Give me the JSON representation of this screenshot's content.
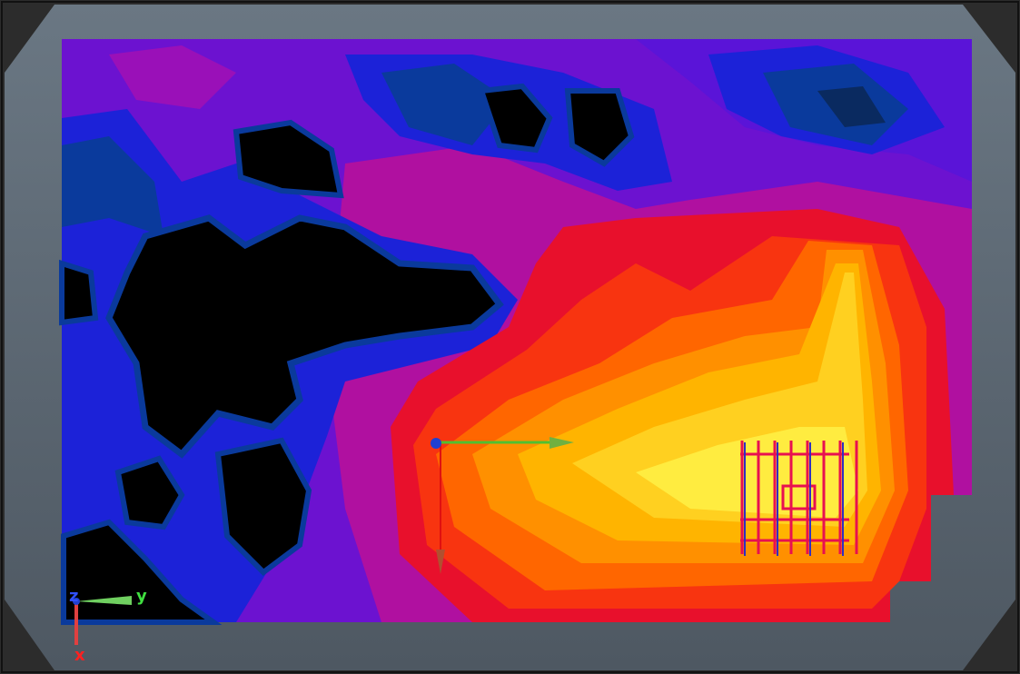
{
  "axis_gizmo": {
    "z": "z",
    "y": "y",
    "x": "x"
  }
}
